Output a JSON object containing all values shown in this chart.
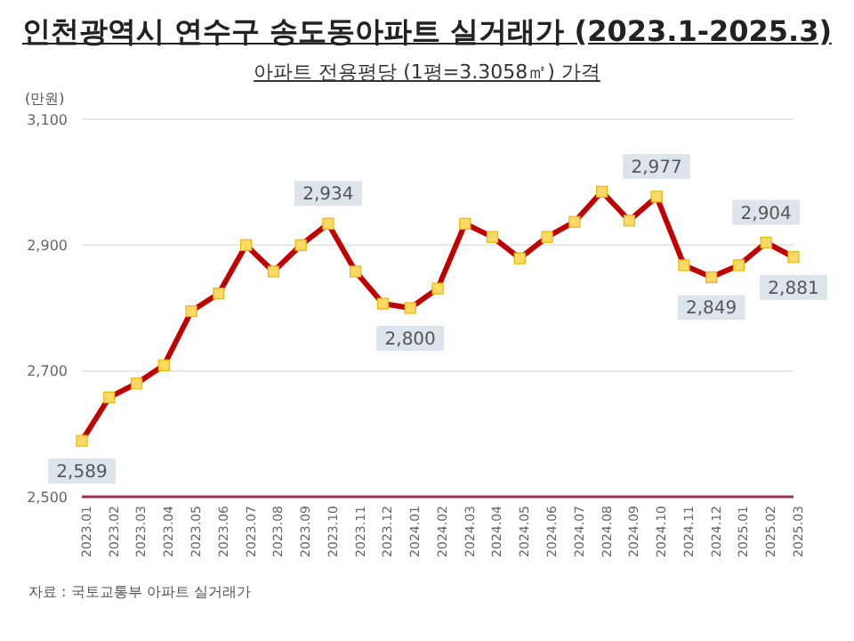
{
  "chart_data": {
    "type": "line",
    "title": "인천광역시 연수구 송도동아파트 실거래가 (2023.1-2025.3)",
    "subtitle": "아파트 전용평당 (1평=3.3058㎡) 가격",
    "ylabel": "(만원)",
    "categories": [
      "2023.01",
      "2023.02",
      "2023.03",
      "2023.04",
      "2023.05",
      "2023.06",
      "2023.07",
      "2023.08",
      "2023.09",
      "2023.10",
      "2023.11",
      "2023.12",
      "2024.01",
      "2024.02",
      "2024.03",
      "2024.04",
      "2024.05",
      "2024.06",
      "2024.07",
      "2024.08",
      "2024.09",
      "2024.10",
      "2024.11",
      "2024.12",
      "2025.01",
      "2025.02",
      "2025.03"
    ],
    "series": [
      {
        "color": "#c00000",
        "values": [
          2589,
          2658,
          2680,
          2709,
          2795,
          2823,
          2900,
          2858,
          2900,
          2934,
          2858,
          2807,
          2800,
          2831,
          2934,
          2913,
          2879,
          2913,
          2937,
          2985,
          2939,
          2977,
          2868,
          2849,
          2868,
          2904,
          2881
        ],
        "value_labels": [
          "2,589",
          null,
          null,
          null,
          null,
          null,
          null,
          null,
          null,
          "2,934",
          null,
          null,
          "2,800",
          null,
          null,
          null,
          null,
          null,
          null,
          null,
          null,
          "2,977",
          null,
          "2,849",
          null,
          "2,904",
          "2,881"
        ]
      }
    ],
    "ylim": [
      2500,
      3100
    ],
    "yticks": [
      {
        "value": 2500,
        "label": "2,500"
      },
      {
        "value": 2700,
        "label": "2,700"
      },
      {
        "value": 2900,
        "label": "2,900"
      },
      {
        "value": 3100,
        "label": "3,100"
      }
    ],
    "grid": "y",
    "marker": "square",
    "line_style": "solid",
    "annotations": [
      "자료 : 국토교통부 아파트 실거래가"
    ]
  }
}
